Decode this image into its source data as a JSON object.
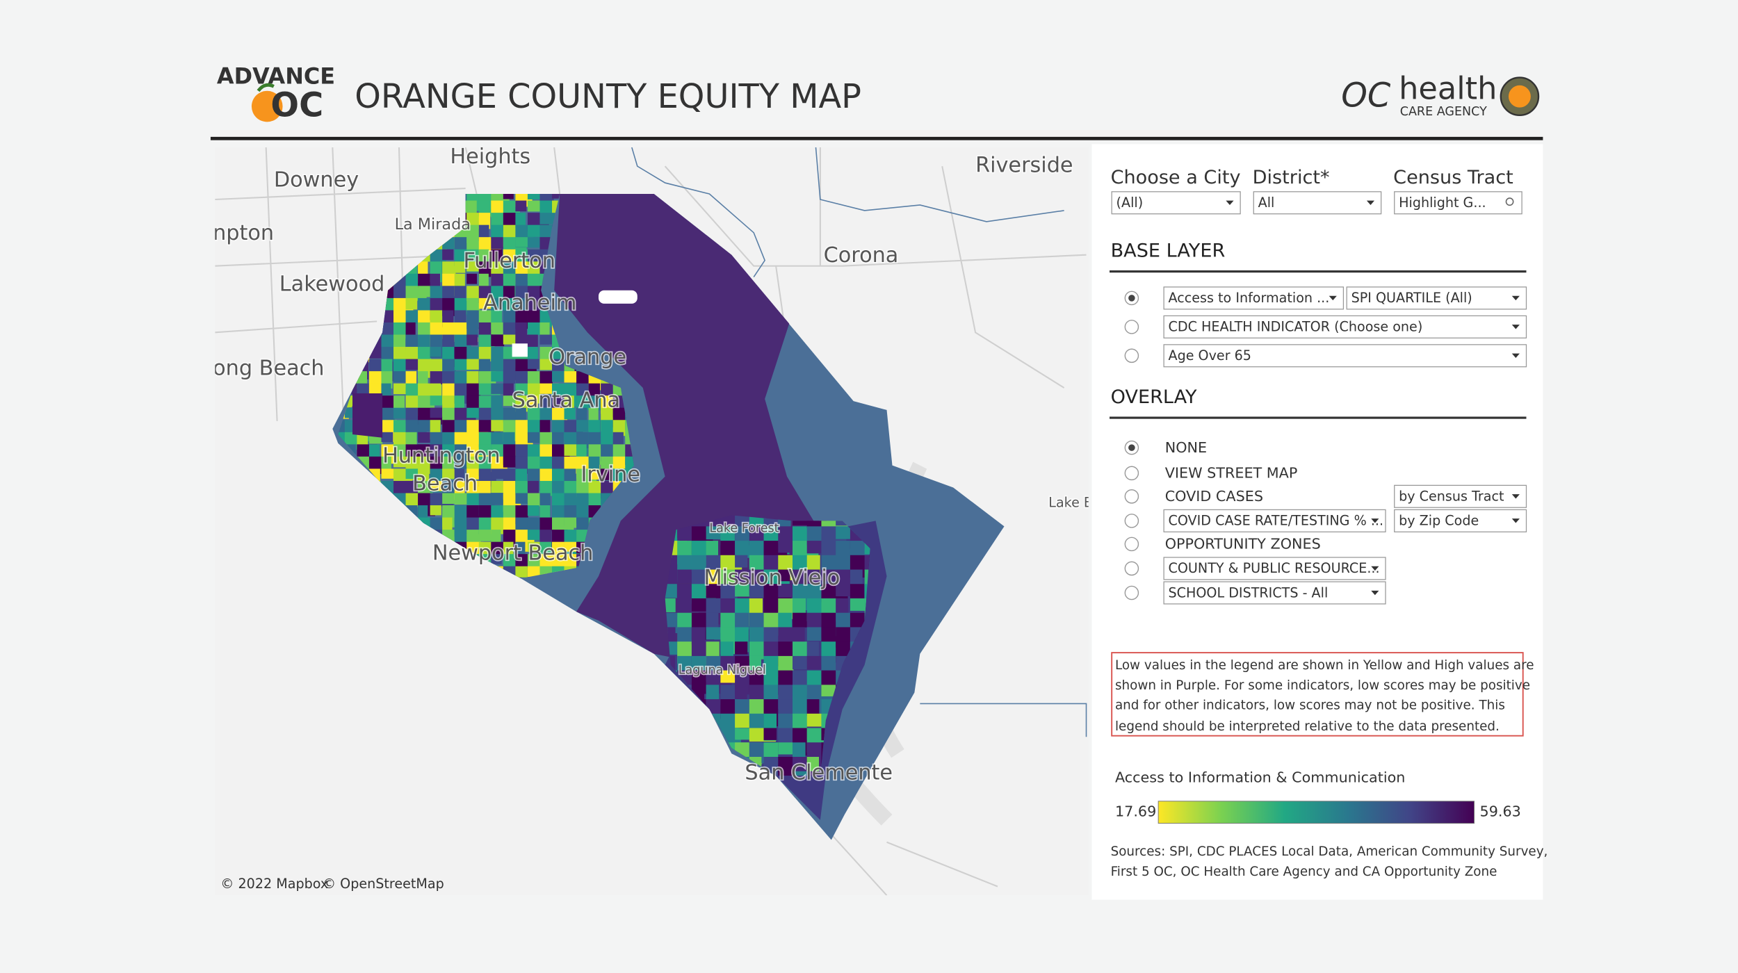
{
  "header": {
    "brand": "ADVANCE",
    "brand_mark": "OC",
    "title": "ORANGE COUNTY EQUITY MAP",
    "agency_mark": "OC",
    "agency_name": "health",
    "agency_sub": "CARE AGENCY"
  },
  "map": {
    "labels": [
      "Heights",
      "Downey",
      "Riverside",
      "La Mirada",
      "npton",
      "Corona",
      "Lakewood",
      "Fullerton",
      "Anaheim",
      "Orange",
      "ong Beach",
      "Santa Ana",
      "Huntington",
      "Beach",
      "Irvine",
      "Lake E",
      "Lake Forest",
      "Newport Beach",
      "Mission Viejo",
      "Laguna Niguel",
      "San Clemente"
    ],
    "attribution": [
      "© 2022 Mapbox",
      "© OpenStreetMap"
    ]
  },
  "filters": [
    {
      "label": "Choose a City",
      "value": "(All)"
    },
    {
      "label": "District*",
      "value": "All"
    },
    {
      "label": "Census Tract",
      "value": "Highlight G..."
    }
  ],
  "base_layer": {
    "title": "BASE LAYER",
    "rows": [
      [
        "Access to Information ...",
        "SPI QUARTILE (All)"
      ],
      [
        "CDC HEALTH INDICATOR (Choose one)"
      ],
      [
        "Age Over 65"
      ]
    ]
  },
  "overlay": {
    "title": "OVERLAY",
    "rows": [
      {
        "label": "NONE"
      },
      {
        "label": "VIEW STREET MAP"
      },
      {
        "label": "COVID CASES",
        "option": "by Census Tract"
      },
      {
        "dropdown": "COVID CASE RATE/TESTING % ...",
        "option": "by Zip Code"
      },
      {
        "label": "OPPORTUNITY ZONES"
      },
      {
        "dropdown": "COUNTY & PUBLIC RESOURCE..."
      },
      {
        "dropdown": "SCHOOL DISTRICTS - All"
      }
    ]
  },
  "note": [
    "Low values in the legend are shown in Yellow and High values are",
    "shown in Purple. For some indicators, low scores may be positive",
    "and for other indicators, low scores may not be positive. This",
    "legend should be interpreted relative to the data presented."
  ],
  "legend": {
    "title": "Access to Information & Communication",
    "min": 17.69,
    "max": 59.63
  },
  "sources": [
    "Sources: SPI, CDC PLACES Local Data, American Community Survey,",
    "First 5 OC, OC Health Care Agency and CA Opportunity Zone"
  ]
}
